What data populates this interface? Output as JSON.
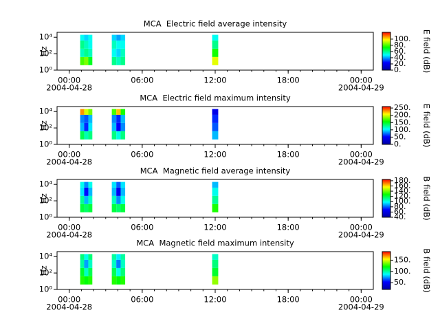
{
  "chart_data": [
    {
      "type": "heatmap",
      "title": "MCA  Electric field average intensity",
      "ylabel": "Hz",
      "xlim": [
        -1,
        25
      ],
      "xticks": [
        {
          "value": 0,
          "label": "00:00"
        },
        {
          "value": 6,
          "label": "06:00"
        },
        {
          "value": 12,
          "label": "12:00"
        },
        {
          "value": 18,
          "label": "18:00"
        },
        {
          "value": 24,
          "label": "00:00"
        }
      ],
      "xticks_minor": [
        0,
        1,
        2,
        3,
        4,
        5,
        6,
        7,
        8,
        9,
        10,
        11,
        12,
        13,
        14,
        15,
        16,
        17,
        18,
        19,
        20,
        21,
        22,
        23,
        24
      ],
      "date_labels": [
        {
          "value": 0,
          "label": "2004-04-28"
        },
        {
          "value": 24,
          "label": "2004-04-29"
        }
      ],
      "log_y": true,
      "ylim": [
        1,
        40000
      ],
      "yticks": [
        {
          "value": 1,
          "label": "10⁰"
        },
        {
          "value": 100,
          "label": "10²"
        },
        {
          "value": 10000,
          "label": "10⁴"
        }
      ],
      "y_bins": [
        4,
        40,
        400,
        4000,
        20000
      ],
      "time_bins": [
        [
          0.9,
          1.23
        ],
        [
          1.23,
          1.57
        ],
        [
          1.57,
          1.9
        ],
        [
          3.5,
          3.87
        ],
        [
          3.87,
          4.23
        ],
        [
          4.23,
          4.6
        ],
        [
          11.75,
          12.25
        ]
      ],
      "values": [
        [
          80,
          55,
          60,
          50
        ],
        [
          85,
          60,
          55,
          45
        ],
        [
          70,
          55,
          50,
          50
        ],
        [
          60,
          50,
          55,
          45
        ],
        [
          55,
          45,
          50,
          40
        ],
        [
          60,
          55,
          50,
          45
        ],
        [
          95,
          75,
          60,
          50
        ]
      ],
      "colormap": [
        "#0000a0",
        "#0000ff",
        "#00ffff",
        "#00ff00",
        "#ffff00",
        "#ff0000"
      ],
      "colorbar_label": "E field (dB)",
      "clim": [
        0,
        122
      ],
      "cticks": [
        {
          "value": 0,
          "label": "0."
        },
        {
          "value": 20,
          "label": "20."
        },
        {
          "value": 40,
          "label": "40."
        },
        {
          "value": 60,
          "label": "60."
        },
        {
          "value": 80,
          "label": "80."
        },
        {
          "value": 100,
          "label": "100."
        }
      ]
    },
    {
      "type": "heatmap",
      "title": "MCA  Electric field maximum intensity",
      "ylabel": "Hz",
      "xlim": [
        -1,
        25
      ],
      "xticks": [
        {
          "value": 0,
          "label": "00:00"
        },
        {
          "value": 6,
          "label": "06:00"
        },
        {
          "value": 12,
          "label": "12:00"
        },
        {
          "value": 18,
          "label": "18:00"
        },
        {
          "value": 24,
          "label": "00:00"
        }
      ],
      "xticks_minor": [
        0,
        1,
        2,
        3,
        4,
        5,
        6,
        7,
        8,
        9,
        10,
        11,
        12,
        13,
        14,
        15,
        16,
        17,
        18,
        19,
        20,
        21,
        22,
        23,
        24
      ],
      "date_labels": [
        {
          "value": 0,
          "label": "2004-04-28"
        },
        {
          "value": 24,
          "label": "2004-04-29"
        }
      ],
      "log_y": true,
      "ylim": [
        1,
        40000
      ],
      "yticks": [
        {
          "value": 1,
          "label": "10⁰"
        },
        {
          "value": 100,
          "label": "10²"
        },
        {
          "value": 10000,
          "label": "10⁴"
        }
      ],
      "y_bins": [
        4,
        40,
        400,
        4000,
        20000
      ],
      "time_bins": [
        [
          0.9,
          1.23
        ],
        [
          1.23,
          1.57
        ],
        [
          1.57,
          1.9
        ],
        [
          3.5,
          3.87
        ],
        [
          3.87,
          4.23
        ],
        [
          4.23,
          4.6
        ],
        [
          11.75,
          12.25
        ]
      ],
      "values": [
        [
          140,
          90,
          80,
          230
        ],
        [
          120,
          60,
          70,
          200
        ],
        [
          130,
          100,
          90,
          180
        ],
        [
          130,
          90,
          80,
          170
        ],
        [
          110,
          50,
          60,
          220
        ],
        [
          130,
          80,
          90,
          160
        ],
        [
          90,
          70,
          60,
          40
        ]
      ],
      "colormap": [
        "#0000a0",
        "#0000ff",
        "#00ffff",
        "#00ff00",
        "#ffff00",
        "#ff0000"
      ],
      "colorbar_label": "E field (dB)",
      "clim": [
        0,
        260
      ],
      "cticks": [
        {
          "value": 0,
          "label": "0."
        },
        {
          "value": 50,
          "label": "50."
        },
        {
          "value": 100,
          "label": "100."
        },
        {
          "value": 150,
          "label": "150."
        },
        {
          "value": 200,
          "label": "200."
        },
        {
          "value": 250,
          "label": "250."
        }
      ]
    },
    {
      "type": "heatmap",
      "title": "MCA  Magnetic field average intensity",
      "ylabel": "Hz",
      "xlim": [
        -1,
        25
      ],
      "xticks": [
        {
          "value": 0,
          "label": "00:00"
        },
        {
          "value": 6,
          "label": "06:00"
        },
        {
          "value": 12,
          "label": "12:00"
        },
        {
          "value": 18,
          "label": "18:00"
        },
        {
          "value": 24,
          "label": "00:00"
        }
      ],
      "xticks_minor": [
        0,
        1,
        2,
        3,
        4,
        5,
        6,
        7,
        8,
        9,
        10,
        11,
        12,
        13,
        14,
        15,
        16,
        17,
        18,
        19,
        20,
        21,
        22,
        23,
        24
      ],
      "date_labels": [
        {
          "value": 0,
          "label": "2004-04-28"
        },
        {
          "value": 24,
          "label": "2004-04-29"
        }
      ],
      "log_y": true,
      "ylim": [
        1,
        40000
      ],
      "yticks": [
        {
          "value": 1,
          "label": "10⁰"
        },
        {
          "value": 100,
          "label": "10²"
        },
        {
          "value": 10000,
          "label": "10⁴"
        }
      ],
      "y_bins": [
        4,
        40,
        400,
        4000,
        20000
      ],
      "time_bins": [
        [
          0.9,
          1.23
        ],
        [
          1.23,
          1.57
        ],
        [
          1.57,
          1.9
        ],
        [
          3.5,
          3.87
        ],
        [
          3.87,
          4.23
        ],
        [
          4.23,
          4.6
        ],
        [
          11.75,
          12.25
        ]
      ],
      "values": [
        [
          120,
          110,
          95,
          100
        ],
        [
          115,
          90,
          70,
          85
        ],
        [
          120,
          105,
          90,
          100
        ],
        [
          120,
          105,
          90,
          95
        ],
        [
          115,
          85,
          65,
          80
        ],
        [
          120,
          100,
          90,
          95
        ],
        [
          130,
          110,
          100,
          90
        ]
      ],
      "colormap": [
        "#0000a0",
        "#0000ff",
        "#00ffff",
        "#00ff00",
        "#ffff00",
        "#ff0000"
      ],
      "colorbar_label": "B field (dB)",
      "clim": [
        40,
        185
      ],
      "cticks": [
        {
          "value": 40,
          "label": "40."
        },
        {
          "value": 60,
          "label": "60."
        },
        {
          "value": 80,
          "label": "80."
        },
        {
          "value": 100,
          "label": "100."
        },
        {
          "value": 120,
          "label": "120."
        },
        {
          "value": 140,
          "label": "140."
        },
        {
          "value": 160,
          "label": "160."
        },
        {
          "value": 180,
          "label": "180."
        }
      ]
    },
    {
      "type": "heatmap",
      "title": "MCA  Magnetic field maximum intensity",
      "ylabel": "Hz",
      "xlim": [
        -1,
        25
      ],
      "xticks": [
        {
          "value": 0,
          "label": "00:00"
        },
        {
          "value": 6,
          "label": "06:00"
        },
        {
          "value": 12,
          "label": "12:00"
        },
        {
          "value": 18,
          "label": "18:00"
        },
        {
          "value": 24,
          "label": "00:00"
        }
      ],
      "xticks_minor": [
        0,
        1,
        2,
        3,
        4,
        5,
        6,
        7,
        8,
        9,
        10,
        11,
        12,
        13,
        14,
        15,
        16,
        17,
        18,
        19,
        20,
        21,
        22,
        23,
        24
      ],
      "date_labels": [
        {
          "value": 0,
          "label": "2004-04-28"
        },
        {
          "value": 24,
          "label": "2004-04-29"
        }
      ],
      "log_y": true,
      "ylim": [
        1,
        40000
      ],
      "yticks": [
        {
          "value": 1,
          "label": "10⁰"
        },
        {
          "value": 100,
          "label": "10²"
        },
        {
          "value": 10000,
          "label": "10⁴"
        }
      ],
      "y_bins": [
        4,
        40,
        400,
        4000,
        20000
      ],
      "time_bins": [
        [
          0.9,
          1.23
        ],
        [
          1.23,
          1.57
        ],
        [
          1.57,
          1.9
        ],
        [
          3.5,
          3.87
        ],
        [
          3.87,
          4.23
        ],
        [
          4.23,
          4.6
        ],
        [
          11.75,
          12.25
        ]
      ],
      "values": [
        [
          125,
          115,
          100,
          105
        ],
        [
          120,
          95,
          75,
          90
        ],
        [
          125,
          110,
          95,
          105
        ],
        [
          125,
          110,
          95,
          100
        ],
        [
          120,
          90,
          70,
          85
        ],
        [
          125,
          105,
          95,
          100
        ],
        [
          140,
          115,
          105,
          95
        ]
      ],
      "colormap": [
        "#0000a0",
        "#0000ff",
        "#00ffff",
        "#00ff00",
        "#ffff00",
        "#ff0000"
      ],
      "colorbar_label": "B field (dB)",
      "clim": [
        20,
        188
      ],
      "cticks": [
        {
          "value": 50,
          "label": "50."
        },
        {
          "value": 100,
          "label": "100."
        },
        {
          "value": 150,
          "label": "150."
        }
      ]
    }
  ]
}
